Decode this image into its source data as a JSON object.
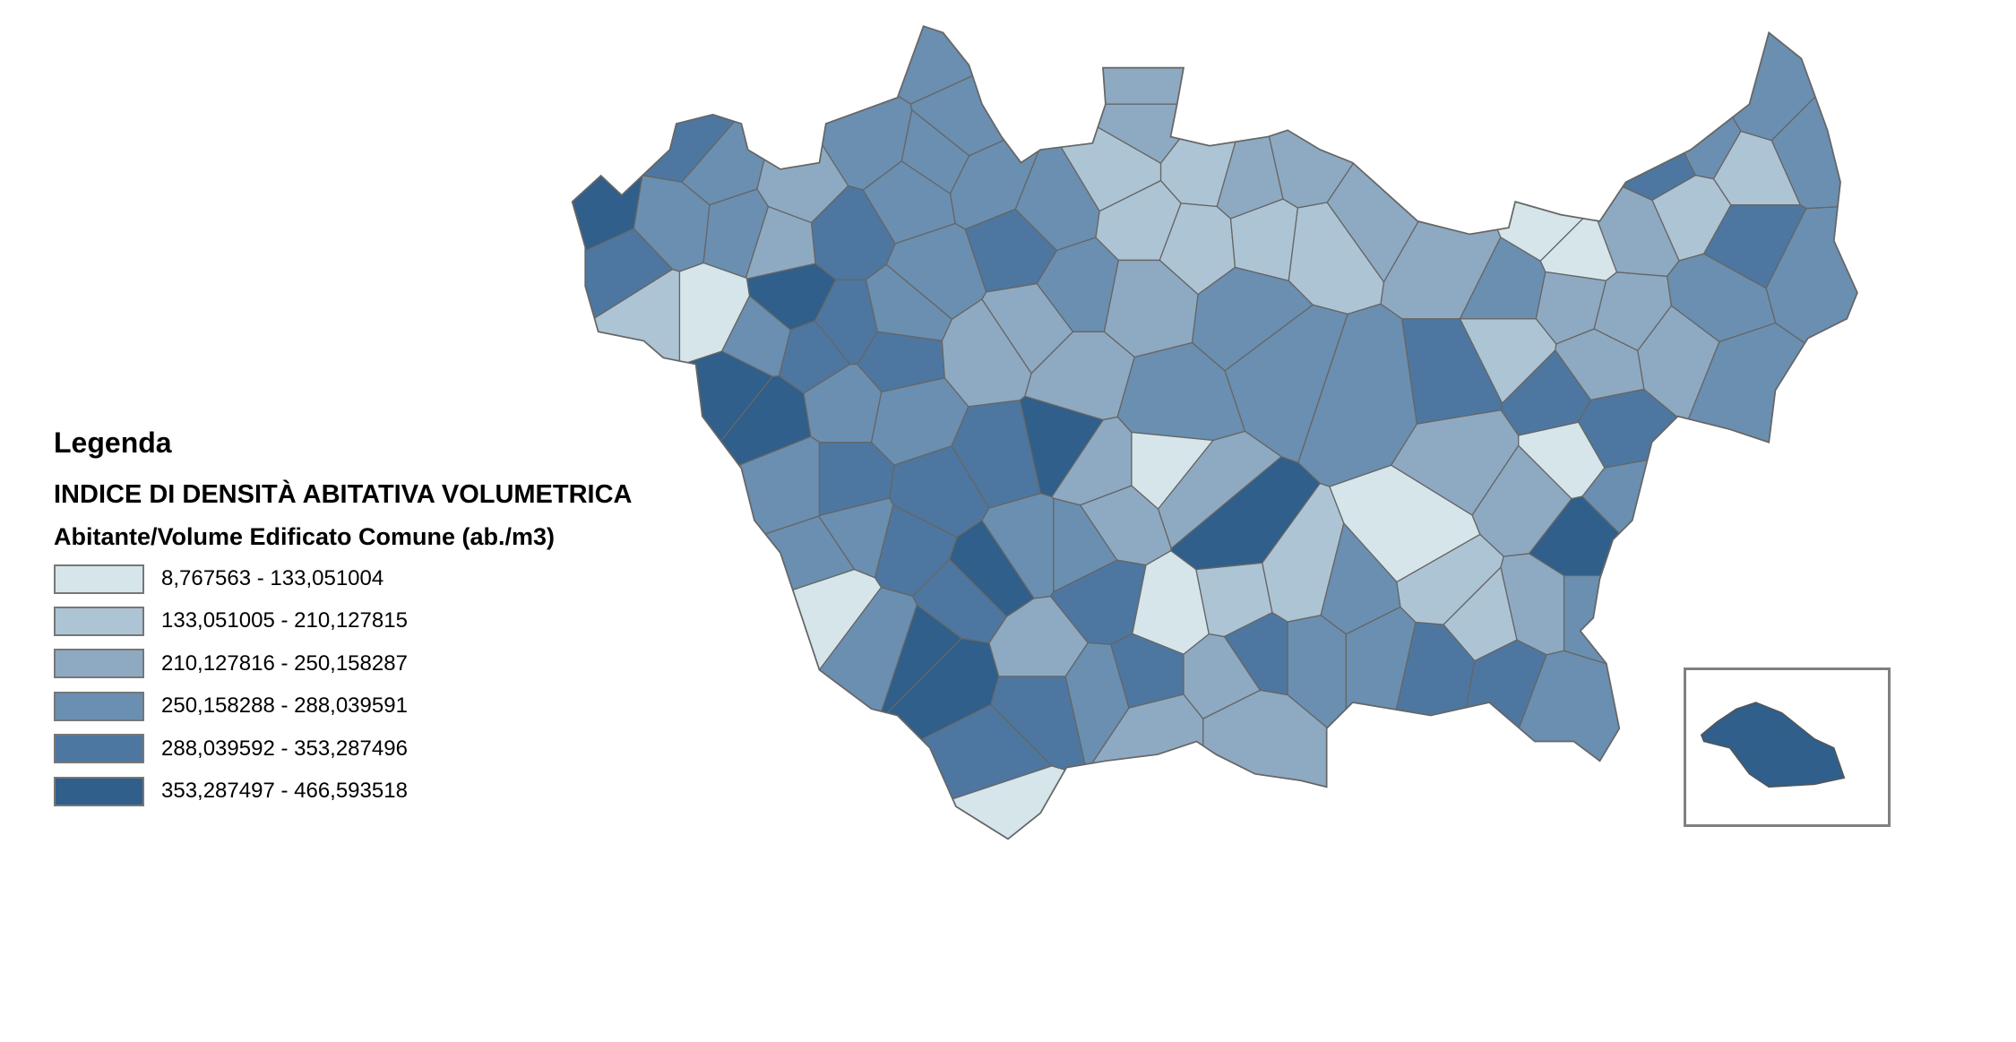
{
  "legend": {
    "title": "Legenda",
    "indicator": "INDICE DI DENSITÀ ABITATIVA VOLUMETRICA",
    "subtitle": "Abitante/Volume Edificato Comune (ab./m3)",
    "classes": [
      {
        "label": "8,767563 - 133,051004",
        "color": "#d5e5ea"
      },
      {
        "label": "133,051005 - 210,127815",
        "color": "#adc4d4"
      },
      {
        "label": "210,127816 - 250,158287",
        "color": "#8eaac2"
      },
      {
        "label": "250,158288 - 288,039591",
        "color": "#6a8fb1"
      },
      {
        "label": "288,039592 - 353,287496",
        "color": "#4d77a0"
      },
      {
        "label": "353,287497 - 466,593518",
        "color": "#2f5f8a"
      }
    ]
  },
  "map": {
    "border_color": "#666666",
    "inset_class": 5
  }
}
